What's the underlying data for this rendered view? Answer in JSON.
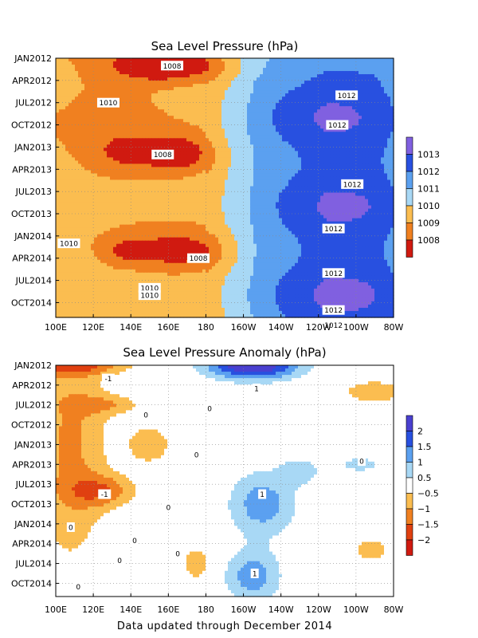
{
  "footer": "Data updated through December 2014",
  "chart_data": [
    {
      "type": "heatmap",
      "title": "Sea Level Pressure (hPa)",
      "x_ticks": [
        "100E",
        "120E",
        "140E",
        "160E",
        "180",
        "160W",
        "140W",
        "120W",
        "100W",
        "80W"
      ],
      "y_ticks": [
        "JAN2012",
        "APR2012",
        "JUL2012",
        "OCT2012",
        "JAN2013",
        "APR2013",
        "JUL2013",
        "OCT2013",
        "JAN2014",
        "APR2014",
        "JUL2014",
        "OCT2014"
      ],
      "colorbar": {
        "labels": [
          "1008",
          "1009",
          "1010",
          "1011",
          "1012",
          "1013"
        ],
        "colors": [
          "#d01a10",
          "#f08020",
          "#fbbd50",
          "#a8d8f5",
          "#5ba0f0",
          "#2850e0",
          "#8060e0"
        ]
      },
      "contour_labels": [
        {
          "text": "1008",
          "lon": 162,
          "month": 1
        },
        {
          "text": "1010",
          "lon": 128,
          "month": 6
        },
        {
          "text": "1012",
          "lon": 255,
          "month": 5
        },
        {
          "text": "1012",
          "lon": 250,
          "month": 9
        },
        {
          "text": "1008",
          "lon": 157,
          "month": 13
        },
        {
          "text": "1012",
          "lon": 258,
          "month": 17
        },
        {
          "text": "1010",
          "lon": 107,
          "month": 25
        },
        {
          "text": "1012",
          "lon": 248,
          "month": 23
        },
        {
          "text": "1008",
          "lon": 176,
          "month": 27
        },
        {
          "text": "1012",
          "lon": 248,
          "month": 29
        },
        {
          "text": "1012",
          "lon": 248,
          "month": 34
        },
        {
          "text": "1010",
          "lon": 150,
          "month": 31
        },
        {
          "text": "1010",
          "lon": 150,
          "month": 32
        },
        {
          "text": "1012",
          "lon": 248,
          "month": 36
        }
      ],
      "features": [
        {
          "lon": 160,
          "month": 1,
          "dlon": 28,
          "dmonth": 2.2,
          "amp": -2.6
        },
        {
          "lon": 140,
          "month": 13,
          "dlon": 25,
          "dmonth": 3.0,
          "amp": -1.6
        },
        {
          "lon": 168,
          "month": 13,
          "dlon": 16,
          "dmonth": 2.5,
          "amp": -1.8
        },
        {
          "lon": 165,
          "month": 26,
          "dlon": 25,
          "dmonth": 2.5,
          "amp": -2.2
        },
        {
          "lon": 135,
          "month": 26,
          "dlon": 14,
          "dmonth": 2.0,
          "amp": -1.3
        },
        {
          "lon": 130,
          "month": 4,
          "dlon": 28,
          "dmonth": 8.0,
          "amp": -0.6
        },
        {
          "lon": 245,
          "month": 8,
          "dlon": 45,
          "dmonth": 5.0,
          "amp": 1.5
        },
        {
          "lon": 250,
          "month": 20,
          "dlon": 45,
          "dmonth": 5.0,
          "amp": 1.5
        },
        {
          "lon": 250,
          "month": 32,
          "dlon": 45,
          "dmonth": 5.0,
          "amp": 1.6
        }
      ]
    },
    {
      "type": "heatmap",
      "title": "Sea Level Pressure Anomaly (hPa)",
      "x_ticks": [
        "100E",
        "120E",
        "140E",
        "160E",
        "180",
        "160W",
        "140W",
        "120W",
        "100W",
        "80W"
      ],
      "y_ticks": [
        "JAN2012",
        "APR2012",
        "JUL2012",
        "OCT2012",
        "JAN2013",
        "APR2013",
        "JUL2013",
        "OCT2013",
        "JAN2014",
        "APR2014",
        "JUL2014",
        "OCT2014"
      ],
      "colorbar": {
        "labels": [
          "2",
          "1.5",
          "1",
          "0.5",
          "−0.5",
          "−1",
          "−1.5",
          "−2"
        ],
        "colors": [
          "#4a40d0",
          "#2850e0",
          "#5ba0f0",
          "#a8d8f5",
          "#ffffff",
          "#fbbd50",
          "#f08020",
          "#e04010",
          "#d01a10"
        ]
      },
      "contour_labels": [
        {
          "text": "-1",
          "lon": 128,
          "month": 2
        },
        {
          "text": "1",
          "lon": 207,
          "month": 3.5
        },
        {
          "text": "0",
          "lon": 182,
          "month": 6.5
        },
        {
          "text": "0",
          "lon": 148,
          "month": 7.5
        },
        {
          "text": "0",
          "lon": 175,
          "month": 13.5
        },
        {
          "text": "0",
          "lon": 263,
          "month": 14.5
        },
        {
          "text": "-1",
          "lon": 126,
          "month": 19.5
        },
        {
          "text": "1",
          "lon": 210,
          "month": 19.5
        },
        {
          "text": "0",
          "lon": 160,
          "month": 21.5
        },
        {
          "text": "0",
          "lon": 108,
          "month": 24.5
        },
        {
          "text": "0",
          "lon": 142,
          "month": 26.5
        },
        {
          "text": "0",
          "lon": 134,
          "month": 29.5
        },
        {
          "text": "0",
          "lon": 165,
          "month": 28.5
        },
        {
          "text": "1",
          "lon": 206,
          "month": 31.5
        },
        {
          "text": "0",
          "lon": 112,
          "month": 33.5
        }
      ],
      "features": [
        {
          "lon": 205,
          "month": 0,
          "dlon": 25,
          "dmonth": 2.2,
          "amp": 2.6
        },
        {
          "lon": 110,
          "month": 0,
          "dlon": 30,
          "dmonth": 1.5,
          "amp": -1.3
        },
        {
          "lon": 108,
          "month": 12,
          "dlon": 20,
          "dmonth": 18,
          "amp": -1.1
        },
        {
          "lon": 125,
          "month": 19,
          "dlon": 18,
          "dmonth": 2.5,
          "amp": -1.2
        },
        {
          "lon": 210,
          "month": 21,
          "dlon": 18,
          "dmonth": 5.0,
          "amp": 1.3
        },
        {
          "lon": 205,
          "month": 32,
          "dlon": 15,
          "dmonth": 4.0,
          "amp": 1.3
        },
        {
          "lon": 150,
          "month": 12,
          "dlon": 12,
          "dmonth": 3.0,
          "amp": -0.9
        },
        {
          "lon": 230,
          "month": 16,
          "dlon": 10,
          "dmonth": 2.0,
          "amp": 0.8
        },
        {
          "lon": 270,
          "month": 4,
          "dlon": 20,
          "dmonth": 2.0,
          "amp": -0.8
        },
        {
          "lon": 268,
          "month": 28,
          "dlon": 10,
          "dmonth": 2.0,
          "amp": -0.8
        },
        {
          "lon": 128,
          "month": 6,
          "dlon": 18,
          "dmonth": 1.5,
          "amp": -0.8
        },
        {
          "lon": 262,
          "month": 15,
          "dlon": 18,
          "dmonth": 2.0,
          "amp": 0.6
        },
        {
          "lon": 175,
          "month": 30,
          "dlon": 8,
          "dmonth": 3.0,
          "amp": -0.8
        }
      ]
    }
  ]
}
